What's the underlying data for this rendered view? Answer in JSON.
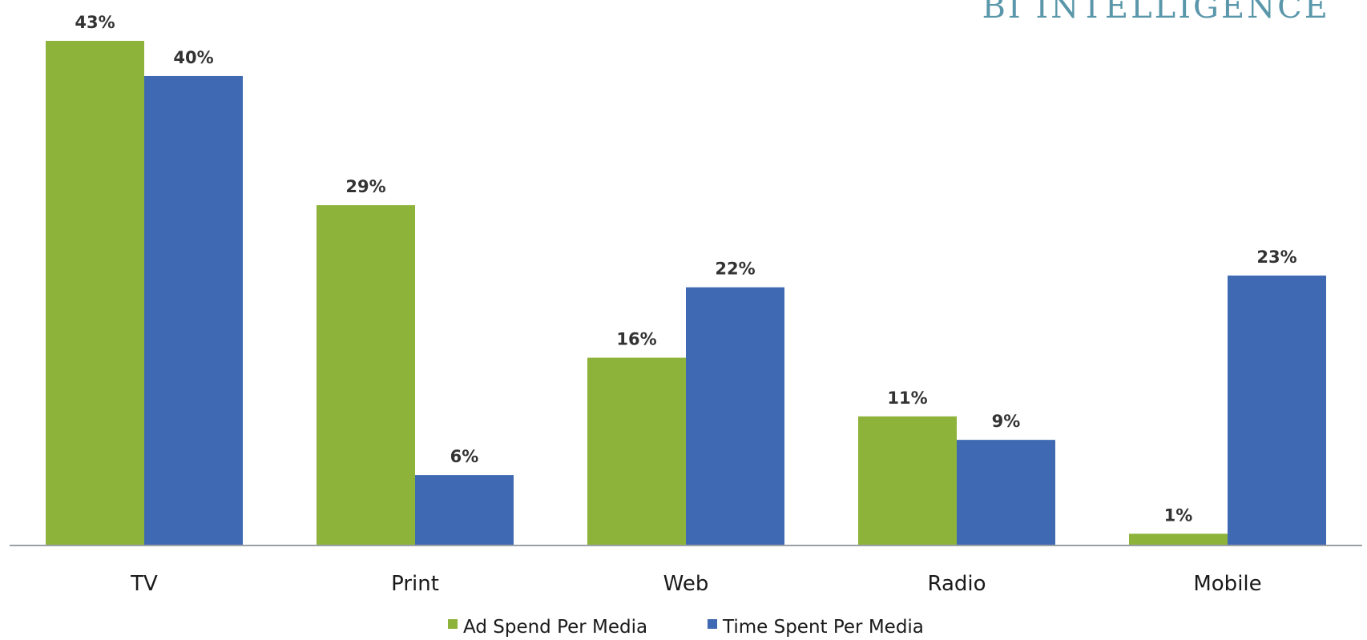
{
  "brand": {
    "text": "BI INTELLIGENCE"
  },
  "chart_data": {
    "type": "bar",
    "categories": [
      "TV",
      "Print",
      "Web",
      "Radio",
      "Mobile"
    ],
    "series": [
      {
        "name": "Ad Spend Per Media",
        "color": "#8db33a",
        "values": [
          43,
          29,
          16,
          11,
          1
        ],
        "labels": [
          "43%",
          "29%",
          "16%",
          "11%",
          "1%"
        ]
      },
      {
        "name": "Time Spent Per Media",
        "color": "#3f69b3",
        "values": [
          40,
          6,
          22,
          9,
          23
        ],
        "labels": [
          "40%",
          "6%",
          "22%",
          "9%",
          "23%"
        ]
      }
    ],
    "ylim": [
      0,
      43
    ],
    "grid": false,
    "legend_position": "bottom"
  }
}
